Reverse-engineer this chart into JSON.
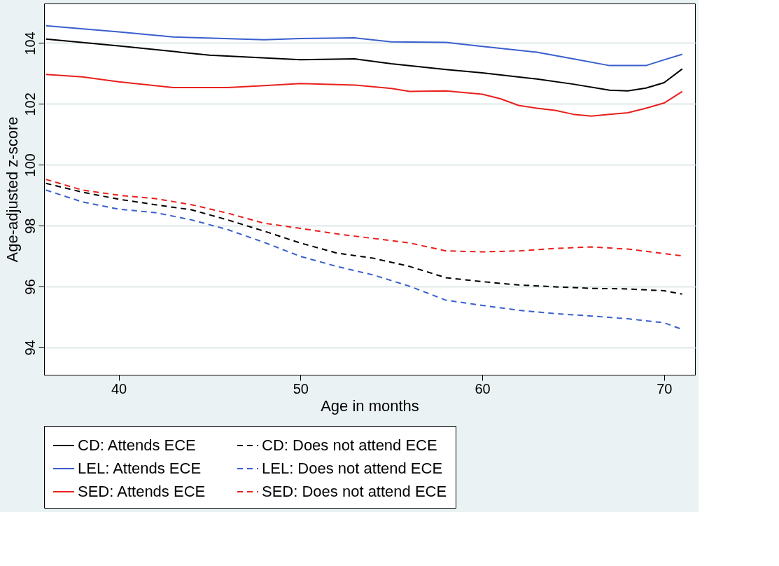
{
  "chart_data": {
    "type": "line",
    "xlabel": "Age in months",
    "ylabel": "Age-adjusted z-score",
    "xlim": [
      35.9,
      71.7
    ],
    "ylim": [
      93.1,
      105.3
    ],
    "xticks": [
      40,
      50,
      60,
      70
    ],
    "yticks": [
      94,
      96,
      98,
      100,
      102,
      104
    ],
    "grid": "y",
    "legend": "bottom",
    "marker": "none",
    "series": [
      {
        "name": "CD: Attends ECE",
        "color": "#000000",
        "line_style": "solid",
        "x": [
          36,
          40,
          45,
          50,
          53,
          55,
          58,
          60,
          63,
          65,
          67,
          68,
          69,
          70,
          71
        ],
        "values": [
          104.13,
          103.91,
          103.6,
          103.45,
          103.48,
          103.32,
          103.13,
          103.02,
          102.82,
          102.65,
          102.45,
          102.43,
          102.52,
          102.7,
          103.15
        ]
      },
      {
        "name": "CD: Does not attend ECE",
        "color": "#000000",
        "line_style": "dashed",
        "x": [
          36,
          38,
          40,
          42,
          44,
          46,
          48,
          50,
          52,
          54,
          56,
          58,
          60,
          62,
          64,
          66,
          68,
          70,
          71
        ],
        "values": [
          99.39,
          99.1,
          98.87,
          98.69,
          98.52,
          98.19,
          97.82,
          97.43,
          97.1,
          96.93,
          96.66,
          96.29,
          96.16,
          96.05,
          95.99,
          95.94,
          95.92,
          95.86,
          95.75
        ]
      },
      {
        "name": "LEL: Attends ECE",
        "color": "#3a5fcd",
        "line_style": "solid",
        "x": [
          36,
          40,
          43,
          48,
          50,
          53,
          55,
          58,
          60,
          63,
          65,
          67,
          69,
          70,
          71
        ],
        "values": [
          104.57,
          104.37,
          104.2,
          104.11,
          104.15,
          104.17,
          104.04,
          104.02,
          103.89,
          103.7,
          103.48,
          103.26,
          103.26,
          103.45,
          103.63
        ]
      },
      {
        "name": "LEL: Does not attend ECE",
        "color": "#3a5fcd",
        "line_style": "dashed",
        "x": [
          36,
          38,
          40,
          42,
          44,
          46,
          48,
          50,
          52,
          54,
          56,
          58,
          60,
          62,
          64,
          66,
          68,
          70,
          71
        ],
        "values": [
          99.17,
          98.78,
          98.54,
          98.43,
          98.19,
          97.87,
          97.45,
          96.99,
          96.66,
          96.38,
          96.01,
          95.55,
          95.38,
          95.22,
          95.11,
          95.03,
          94.94,
          94.81,
          94.59
        ]
      },
      {
        "name": "SED: Attends ECE",
        "color": "#e8201c",
        "line_style": "solid",
        "x": [
          36,
          38,
          40,
          43,
          46,
          48,
          50,
          53,
          55,
          56,
          58,
          60,
          61,
          62,
          63,
          64,
          65,
          66,
          67,
          68,
          69,
          70,
          71
        ],
        "values": [
          102.97,
          102.89,
          102.73,
          102.54,
          102.54,
          102.6,
          102.67,
          102.62,
          102.51,
          102.41,
          102.43,
          102.32,
          102.17,
          101.95,
          101.86,
          101.79,
          101.66,
          101.6,
          101.66,
          101.71,
          101.86,
          102.03,
          102.41
        ]
      },
      {
        "name": "SED: Does not attend ECE",
        "color": "#e8201c",
        "line_style": "dashed",
        "x": [
          36,
          38,
          40,
          42,
          44,
          46,
          48,
          50,
          52,
          54,
          56,
          58,
          60,
          62,
          64,
          66,
          68,
          70,
          71
        ],
        "values": [
          99.52,
          99.17,
          99.0,
          98.89,
          98.69,
          98.41,
          98.08,
          97.91,
          97.73,
          97.58,
          97.43,
          97.17,
          97.14,
          97.17,
          97.25,
          97.3,
          97.23,
          97.08,
          97.01
        ]
      }
    ]
  }
}
